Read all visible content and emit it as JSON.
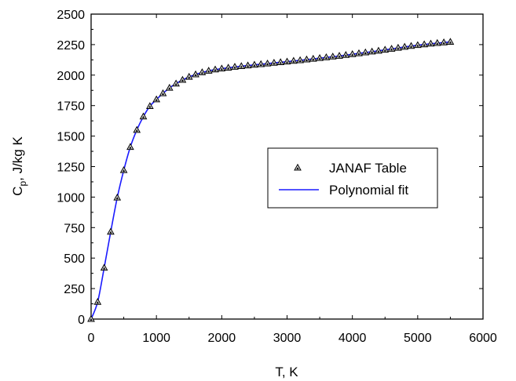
{
  "chart_data": {
    "type": "scatter",
    "xlabel": "T, K",
    "ylabel": {
      "main": "C",
      "sub": "p",
      "rest": ", J/kg K"
    },
    "xlim": [
      0,
      6000
    ],
    "ylim": [
      0,
      2500
    ],
    "xticks": [
      0,
      1000,
      2000,
      3000,
      4000,
      5000,
      6000
    ],
    "yticks": [
      0,
      250,
      500,
      750,
      1000,
      1250,
      1500,
      1750,
      2000,
      2250,
      2500
    ],
    "grid": false,
    "legend_position": "right-center",
    "series": [
      {
        "name": "JANAF Table",
        "kind": "markers",
        "marker": "triangle",
        "x": [
          0,
          100,
          200,
          300,
          400,
          500,
          600,
          700,
          800,
          900,
          1000,
          1100,
          1200,
          1300,
          1400,
          1500,
          1600,
          1700,
          1800,
          1900,
          2000,
          2100,
          2200,
          2300,
          2400,
          2500,
          2600,
          2700,
          2800,
          2900,
          3000,
          3100,
          3200,
          3300,
          3400,
          3500,
          3600,
          3700,
          3800,
          3900,
          4000,
          4100,
          4200,
          4300,
          4400,
          4500,
          4600,
          4700,
          4800,
          4900,
          5000,
          5100,
          5200,
          5300,
          5400,
          5500
        ],
        "y": [
          0,
          140,
          420,
          715,
          995,
          1220,
          1410,
          1550,
          1660,
          1745,
          1800,
          1850,
          1895,
          1930,
          1960,
          1985,
          2005,
          2022,
          2035,
          2045,
          2053,
          2060,
          2067,
          2073,
          2078,
          2084,
          2089,
          2094,
          2100,
          2105,
          2110,
          2116,
          2121,
          2127,
          2133,
          2139,
          2145,
          2151,
          2157,
          2164,
          2171,
          2178,
          2185,
          2192,
          2199,
          2207,
          2215,
          2223,
          2231,
          2238,
          2245,
          2251,
          2257,
          2262,
          2267,
          2272
        ]
      },
      {
        "name": "Polynomial fit",
        "kind": "line",
        "color": "#1a1aff"
      }
    ]
  }
}
